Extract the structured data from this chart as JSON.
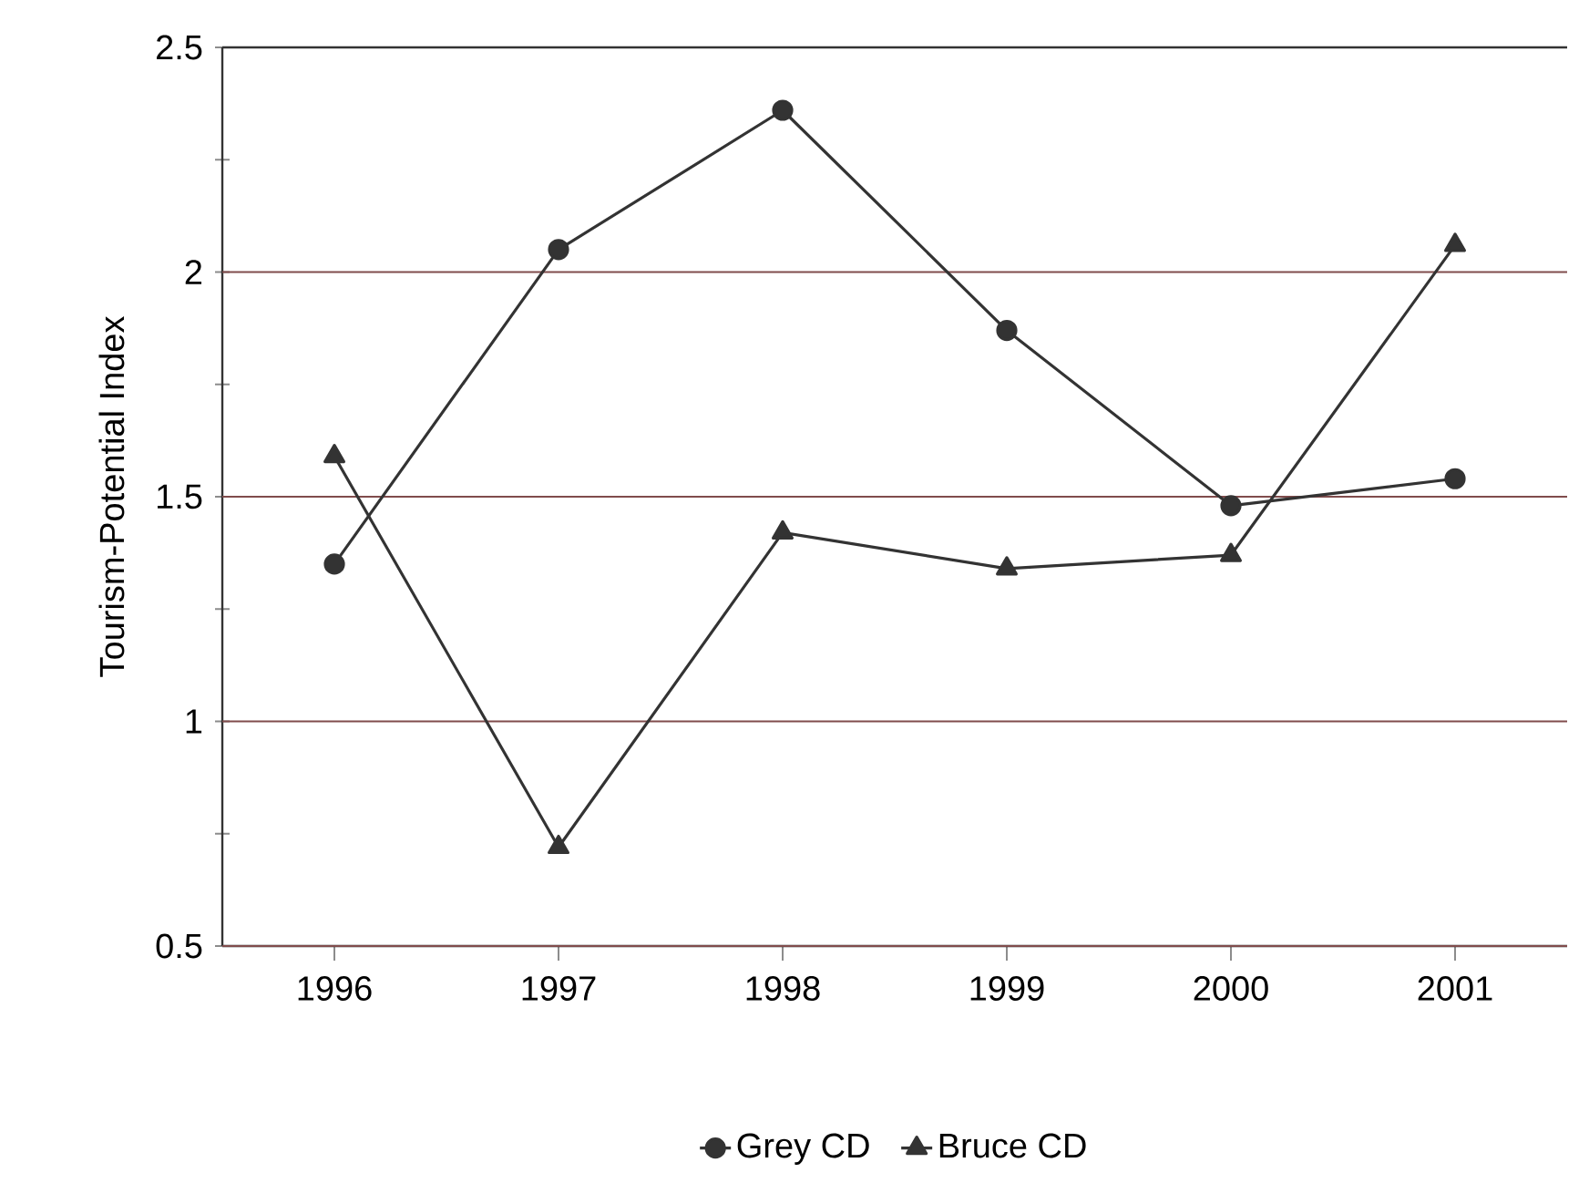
{
  "chart_data": {
    "type": "line",
    "ylabel": "Tourism-Potential Index",
    "categories": [
      "1996",
      "1997",
      "1998",
      "1999",
      "2000",
      "2001"
    ],
    "series": [
      {
        "name": "Grey CD",
        "color": "#333333",
        "marker": "circle",
        "values": [
          1.35,
          2.05,
          2.36,
          1.87,
          1.48,
          1.54
        ]
      },
      {
        "name": "Bruce CD",
        "color": "#333333",
        "marker": "triangle",
        "values": [
          1.59,
          0.72,
          1.42,
          1.34,
          1.37,
          2.06
        ]
      }
    ],
    "ylim": [
      0.5,
      2.5
    ],
    "yticks": [
      0.5,
      {
        "value": 0.75,
        "label": null
      },
      1,
      {
        "value": 1.25,
        "label": null
      },
      1.5,
      {
        "value": 1.75,
        "label": null
      },
      2,
      {
        "value": 2.25,
        "label": null
      },
      2.5
    ],
    "grid": "y",
    "legend": "bottom",
    "line_style": "solid"
  }
}
